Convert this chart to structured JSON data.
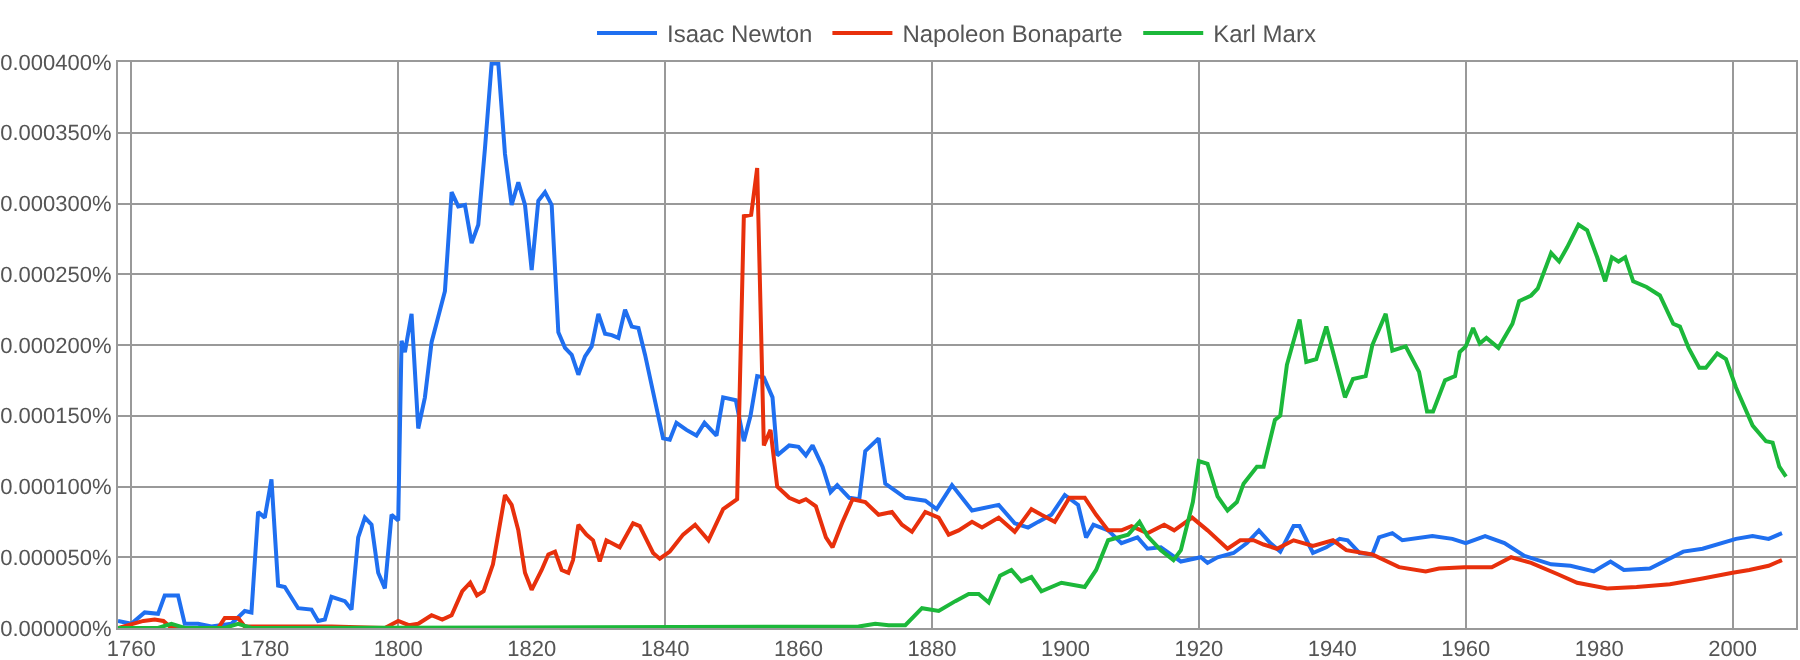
{
  "chart_data": {
    "type": "line",
    "xlim": [
      1758,
      2009.5
    ],
    "xticks": [
      1760,
      1780,
      1800,
      1820,
      1840,
      1860,
      1880,
      1900,
      1920,
      1940,
      1960,
      1980,
      2000
    ],
    "ylim": [
      0,
      0.0004
    ],
    "yticks": [
      {
        "value": 0,
        "label": "0.000000%"
      },
      {
        "value": 5e-05,
        "label": "0.000050%"
      },
      {
        "value": 0.0001,
        "label": "0.000100%"
      },
      {
        "value": 0.00015,
        "label": "0.000150%"
      },
      {
        "value": 0.0002,
        "label": "0.000200%"
      },
      {
        "value": 0.00025,
        "label": "0.000250%"
      },
      {
        "value": 0.0003,
        "label": "0.000300%"
      },
      {
        "value": 0.00035,
        "label": "0.000350%"
      },
      {
        "value": 0.0004,
        "label": "0.000400%"
      }
    ],
    "grid": true,
    "legend": "top",
    "marker": "none",
    "line_style": "solid",
    "series": [
      {
        "name": "Isaac Newton",
        "color": "#1f6ff0",
        "x": [
          1758,
          1760,
          1762,
          1764,
          1765,
          1767,
          1768,
          1770,
          1772,
          1775,
          1777,
          1778,
          1779,
          1780,
          1781,
          1782,
          1783,
          1785,
          1787,
          1788,
          1789,
          1790,
          1792,
          1793,
          1794,
          1795,
          1796,
          1797,
          1798,
          1799,
          1800,
          1800.5,
          1801,
          1802,
          1803,
          1804,
          1805,
          1807,
          1808,
          1809,
          1810,
          1811,
          1812,
          1813,
          1814,
          1815,
          1816,
          1817,
          1818,
          1819,
          1820,
          1821,
          1822,
          1823,
          1824,
          1825,
          1826,
          1827,
          1828,
          1829,
          1830,
          1831,
          1832,
          1833,
          1834,
          1835,
          1836,
          1837,
          1839.7,
          1840.7,
          1841.7,
          1843.2,
          1844.7,
          1845.9,
          1847.7,
          1848.7,
          1850.6,
          1851.8,
          1852.8,
          1853.8,
          1854.8,
          1856.1,
          1856.8,
          1858.6,
          1860,
          1861.1,
          1862.1,
          1863.6,
          1864.8,
          1865.8,
          1867.6,
          1869.1,
          1870,
          1872,
          1873,
          1876,
          1879,
          1880.7,
          1883,
          1886,
          1890,
          1892.4,
          1894.4,
          1895.9,
          1897.9,
          1899.9,
          1901.9,
          1903.1,
          1904.2,
          1906.4,
          1908.4,
          1910.8,
          1912.3,
          1914.3,
          1917.3,
          1920.3,
          1921.3,
          1922.8,
          1925.2,
          1927.2,
          1929,
          1930.7,
          1932.2,
          1934.2,
          1935.1,
          1937.1,
          1939.1,
          1941.1,
          1942.3,
          1944.1,
          1946,
          1947,
          1949,
          1950.5,
          1955,
          1958,
          1960,
          1962.9,
          1965.8,
          1968.8,
          1972.8,
          1975.7,
          1979.2,
          1981.7,
          1983.7,
          1987.6,
          1992.6,
          1995.5,
          2000.5,
          2003,
          2005.4,
          2007.4
        ],
        "values": [
          5e-06,
          3e-06,
          1.1e-05,
          1e-05,
          2.3e-05,
          2.3e-05,
          3e-06,
          3e-06,
          1e-06,
          3e-06,
          1.2e-05,
          1.1e-05,
          8.2e-05,
          7.8e-05,
          0.000105,
          3e-05,
          2.9e-05,
          1.4e-05,
          1.3e-05,
          5e-06,
          6e-06,
          2.2e-05,
          1.9e-05,
          1.3e-05,
          6.4e-05,
          7.8e-05,
          7.3e-05,
          3.9e-05,
          2.8e-05,
          8e-05,
          7.6e-05,
          0.000203,
          0.000195,
          0.000222,
          0.000141,
          0.000163,
          0.000202,
          0.000238,
          0.000308,
          0.000298,
          0.000299,
          0.000272,
          0.000285,
          0.000339,
          0.000399,
          0.000399,
          0.000335,
          0.000299,
          0.000315,
          0.000299,
          0.000253,
          0.000302,
          0.000308,
          0.000299,
          0.000209,
          0.000198,
          0.000193,
          0.000179,
          0.000192,
          0.000199,
          0.000222,
          0.000208,
          0.000207,
          0.000205,
          0.000225,
          0.000213,
          0.000212,
          0.000193,
          0.000134,
          0.000133,
          0.000145,
          0.00014,
          0.000136,
          0.000145,
          0.000136,
          0.000163,
          0.000161,
          0.000132,
          0.00015,
          0.000178,
          0.000177,
          0.000163,
          0.000122,
          0.000129,
          0.000128,
          0.000122,
          0.000129,
          0.000114,
          9.6e-05,
          0.000101,
          9.2e-05,
          9.1e-05,
          0.000125,
          0.000134,
          0.000102,
          9.2e-05,
          9e-05,
          8.4e-05,
          0.000101,
          8.3e-05,
          8.7e-05,
          7.4e-05,
          7.1e-05,
          7.5e-05,
          8e-05,
          9.4e-05,
          8.7e-05,
          6.4e-05,
          7.3e-05,
          6.9e-05,
          6e-05,
          6.4e-05,
          5.6e-05,
          5.7e-05,
          4.7e-05,
          5e-05,
          4.6e-05,
          5e-05,
          5.3e-05,
          6e-05,
          6.9e-05,
          6e-05,
          5.4e-05,
          7.2e-05,
          7.2e-05,
          5.3e-05,
          5.7e-05,
          6.3e-05,
          6.2e-05,
          5.3e-05,
          5.2e-05,
          6.4e-05,
          6.7e-05,
          6.2e-05,
          6.5e-05,
          6.3e-05,
          6e-05,
          6.5e-05,
          6e-05,
          5.1e-05,
          4.5e-05,
          4.4e-05,
          4e-05,
          4.7e-05,
          4.1e-05,
          4.2e-05,
          5.4e-05,
          5.6e-05,
          6.3e-05,
          6.5e-05,
          6.3e-05,
          6.7e-05
        ]
      },
      {
        "name": "Napoleon Bonaparte",
        "color": "#e8300c",
        "x": [
          1758,
          1761.8,
          1763.5,
          1764.8,
          1766,
          1773,
          1774,
          1776,
          1777,
          1788,
          1790,
          1798,
          1800,
          1801.6,
          1803,
          1805,
          1806.6,
          1808,
          1809.6,
          1810.8,
          1811.8,
          1812.8,
          1814.2,
          1816,
          1817,
          1818,
          1819,
          1820,
          1821.5,
          1822.5,
          1823.5,
          1824.5,
          1825.5,
          1826.2,
          1827,
          1828.2,
          1829.2,
          1830.2,
          1831.2,
          1833.2,
          1835.2,
          1836.2,
          1838.2,
          1839.2,
          1840.7,
          1842.7,
          1844.5,
          1846.5,
          1848.7,
          1850.8,
          1851.8,
          1852.9,
          1853.8,
          1854.8,
          1855.8,
          1856.8,
          1858.6,
          1860.1,
          1861.1,
          1862.6,
          1864.1,
          1865.1,
          1866.6,
          1868.1,
          1870,
          1872,
          1874,
          1875.5,
          1877,
          1879,
          1881,
          1882.5,
          1884,
          1886,
          1887.5,
          1890,
          1892.4,
          1894.9,
          1896.4,
          1898.4,
          1900.6,
          1902.9,
          1904.6,
          1906.4,
          1908.4,
          1909.9,
          1912.3,
          1914.8,
          1916.3,
          1919,
          1921.3,
          1924.3,
          1926.2,
          1928.2,
          1929.7,
          1931.7,
          1934.2,
          1937.1,
          1940.1,
          1942.1,
          1946,
          1950,
          1954,
          1956,
          1959.8,
          1963.9,
          1966.8,
          1969.8,
          1973.8,
          1976.7,
          1981.2,
          1985.6,
          1990.6,
          1995.5,
          2000,
          2002.5,
          2005.4,
          2007.4
        ],
        "values": [
          0,
          5e-06,
          6e-06,
          5e-06,
          0,
          0,
          7e-06,
          7e-06,
          1e-06,
          1e-06,
          1e-06,
          0,
          5e-06,
          2e-06,
          3e-06,
          9e-06,
          6e-06,
          9e-06,
          2.6e-05,
          3.2e-05,
          2.3e-05,
          2.6e-05,
          4.5e-05,
          9.4e-05,
          8.7e-05,
          6.9e-05,
          3.9e-05,
          2.7e-05,
          4.1e-05,
          5.2e-05,
          5.4e-05,
          4.1e-05,
          3.9e-05,
          4.8e-05,
          7.3e-05,
          6.6e-05,
          6.2e-05,
          4.7e-05,
          6.2e-05,
          5.7e-05,
          7.4e-05,
          7.2e-05,
          5.3e-05,
          4.9e-05,
          5.4e-05,
          6.6e-05,
          7.3e-05,
          6.2e-05,
          8.4e-05,
          9.1e-05,
          0.000291,
          0.000292,
          0.000325,
          0.000129,
          0.00014,
          0.0001,
          9.2e-05,
          8.9e-05,
          9.1e-05,
          8.6e-05,
          6.4e-05,
          5.7e-05,
          7.5e-05,
          9.1e-05,
          8.9e-05,
          8e-05,
          8.2e-05,
          7.3e-05,
          6.8e-05,
          8.2e-05,
          7.8e-05,
          6.6e-05,
          6.9e-05,
          7.5e-05,
          7.1e-05,
          7.8e-05,
          6.8e-05,
          8.4e-05,
          8e-05,
          7.5e-05,
          9.2e-05,
          9.2e-05,
          8e-05,
          6.9e-05,
          6.9e-05,
          7.2e-05,
          6.7e-05,
          7.3e-05,
          6.9e-05,
          7.8e-05,
          6.9e-05,
          5.6e-05,
          6.2e-05,
          6.2e-05,
          5.9e-05,
          5.6e-05,
          6.2e-05,
          5.8e-05,
          6.2e-05,
          5.5e-05,
          5.2e-05,
          4.3e-05,
          4e-05,
          4.2e-05,
          4.3e-05,
          4.3e-05,
          5e-05,
          4.6e-05,
          3.8e-05,
          3.2e-05,
          2.8e-05,
          2.9e-05,
          3.1e-05,
          3.5e-05,
          3.9e-05,
          4.1e-05,
          4.4e-05,
          4.8e-05
        ]
      },
      {
        "name": "Karl Marx",
        "color": "#1cb83a",
        "x": [
          1758,
          1764,
          1766,
          1768,
          1774,
          1776,
          1778,
          1869,
          1871.5,
          1873.5,
          1876,
          1878.5,
          1881,
          1883.5,
          1885.5,
          1887,
          1888.5,
          1890.2,
          1891.9,
          1893.4,
          1894.9,
          1896.4,
          1899.4,
          1902.9,
          1904.6,
          1906.4,
          1909.4,
          1911.1,
          1912.3,
          1914.3,
          1916.2,
          1917.3,
          1919.1,
          1920,
          1921.3,
          1922.8,
          1924.3,
          1925.7,
          1926.7,
          1928.7,
          1929.7,
          1931.4,
          1932.2,
          1933.2,
          1935.1,
          1936.1,
          1937.6,
          1939.1,
          1941.9,
          1943.1,
          1945,
          1946,
          1948,
          1949,
          1951,
          1953,
          1954.2,
          1955.1,
          1956.9,
          1958.4,
          1959.1,
          1960,
          1961.1,
          1962.1,
          1963.1,
          1964.9,
          1967,
          1968,
          1969.8,
          1970.8,
          1972.8,
          1974,
          1975.2,
          1976.9,
          1978.2,
          1979.7,
          1980.9,
          1981.9,
          1982.9,
          1983.9,
          1985.1,
          1987.1,
          1989.1,
          1991.1,
          1992.1,
          1993.4,
          1995,
          1996,
          1997.7,
          1999,
          2000.5,
          2003,
          2005,
          2006,
          2007,
          2008
        ],
        "values": [
          0,
          0,
          3e-06,
          0,
          0,
          3e-06,
          0,
          1e-06,
          3e-06,
          2e-06,
          2e-06,
          1.4e-05,
          1.2e-05,
          1.9e-05,
          2.4e-05,
          2.4e-05,
          1.8e-05,
          3.7e-05,
          4.1e-05,
          3.3e-05,
          3.6e-05,
          2.6e-05,
          3.2e-05,
          2.9e-05,
          4.1e-05,
          6.2e-05,
          6.6e-05,
          7.5e-05,
          6.5e-05,
          5.5e-05,
          4.8e-05,
          5.5e-05,
          8.9e-05,
          0.000118,
          0.000116,
          9.3e-05,
          8.3e-05,
          8.9e-05,
          0.000102,
          0.000114,
          0.000114,
          0.000147,
          0.00015,
          0.000186,
          0.000218,
          0.000188,
          0.00019,
          0.000213,
          0.000163,
          0.000176,
          0.000178,
          0.0002,
          0.000222,
          0.000196,
          0.000199,
          0.000181,
          0.000153,
          0.000153,
          0.000175,
          0.000178,
          0.000195,
          0.000199,
          0.000212,
          0.000201,
          0.000205,
          0.000198,
          0.000215,
          0.000231,
          0.000235,
          0.00024,
          0.000265,
          0.000259,
          0.000269,
          0.000285,
          0.000281,
          0.000262,
          0.000245,
          0.000262,
          0.000259,
          0.000262,
          0.000245,
          0.000241,
          0.000235,
          0.000215,
          0.000213,
          0.000198,
          0.000184,
          0.000184,
          0.000194,
          0.00019,
          0.00017,
          0.000143,
          0.000132,
          0.000131,
          0.000114,
          0.000107
        ]
      }
    ]
  }
}
